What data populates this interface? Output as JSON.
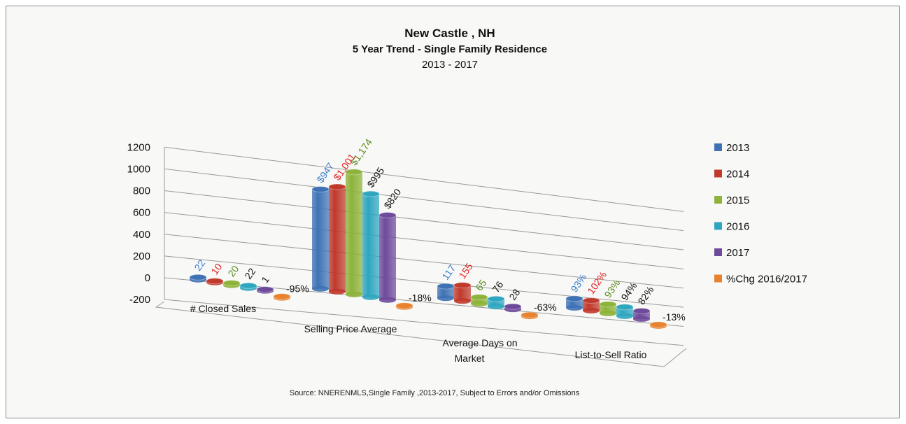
{
  "chart_data": {
    "type": "bar",
    "title": "New Castle , NH",
    "subtitle": "5 Year Trend - Single Family Residence",
    "years_line": "2013 - 2017",
    "source": "Source: NNERENMLS,Single Family ,2013-2017, Subject to Errors and/or Omissions",
    "yticks": [
      "1200",
      "1000",
      "800",
      "600",
      "400",
      "200",
      "0",
      "-200"
    ],
    "ylim": [
      -200,
      1200
    ],
    "categories": [
      "# Closed Sales",
      "Selling Price Average",
      "Average Days on Market",
      "List-to-Sell Ratio"
    ],
    "series": [
      {
        "name": "2013",
        "color": "#3f72b5",
        "values": [
          22,
          947,
          117,
          93
        ],
        "labels": [
          "22",
          "$947",
          "117",
          "93%"
        ],
        "label_color": "#3a7fd0"
      },
      {
        "name": "2014",
        "color": "#c0392b",
        "values": [
          10,
          1001,
          155,
          102
        ],
        "labels": [
          "10",
          "$1,001",
          "155",
          "102%"
        ],
        "label_color": "#e02020"
      },
      {
        "name": "2015",
        "color": "#8db33a",
        "values": [
          20,
          1174,
          65,
          93
        ],
        "labels": [
          "20",
          "$1,174",
          "65",
          "93%"
        ],
        "label_color": "#5a8a1e"
      },
      {
        "name": "2016",
        "color": "#2fa6c0",
        "values": [
          22,
          995,
          76,
          94
        ],
        "labels": [
          "22",
          "$995",
          "76",
          "94%"
        ],
        "label_color": "#111111"
      },
      {
        "name": "2017",
        "color": "#6e4a9b",
        "values": [
          1,
          820,
          28,
          82
        ],
        "labels": [
          "1",
          "$820",
          "28",
          "82%"
        ],
        "label_color": "#111111"
      },
      {
        "name": "%Chg 2016/2017",
        "color": "#e8822e",
        "values": [
          -95,
          -18,
          -63,
          -13
        ],
        "labels": [
          "-95%",
          "-18%",
          "-63%",
          "-13%"
        ],
        "label_color": "#111111"
      }
    ],
    "legend_position": "right",
    "grid": true
  }
}
